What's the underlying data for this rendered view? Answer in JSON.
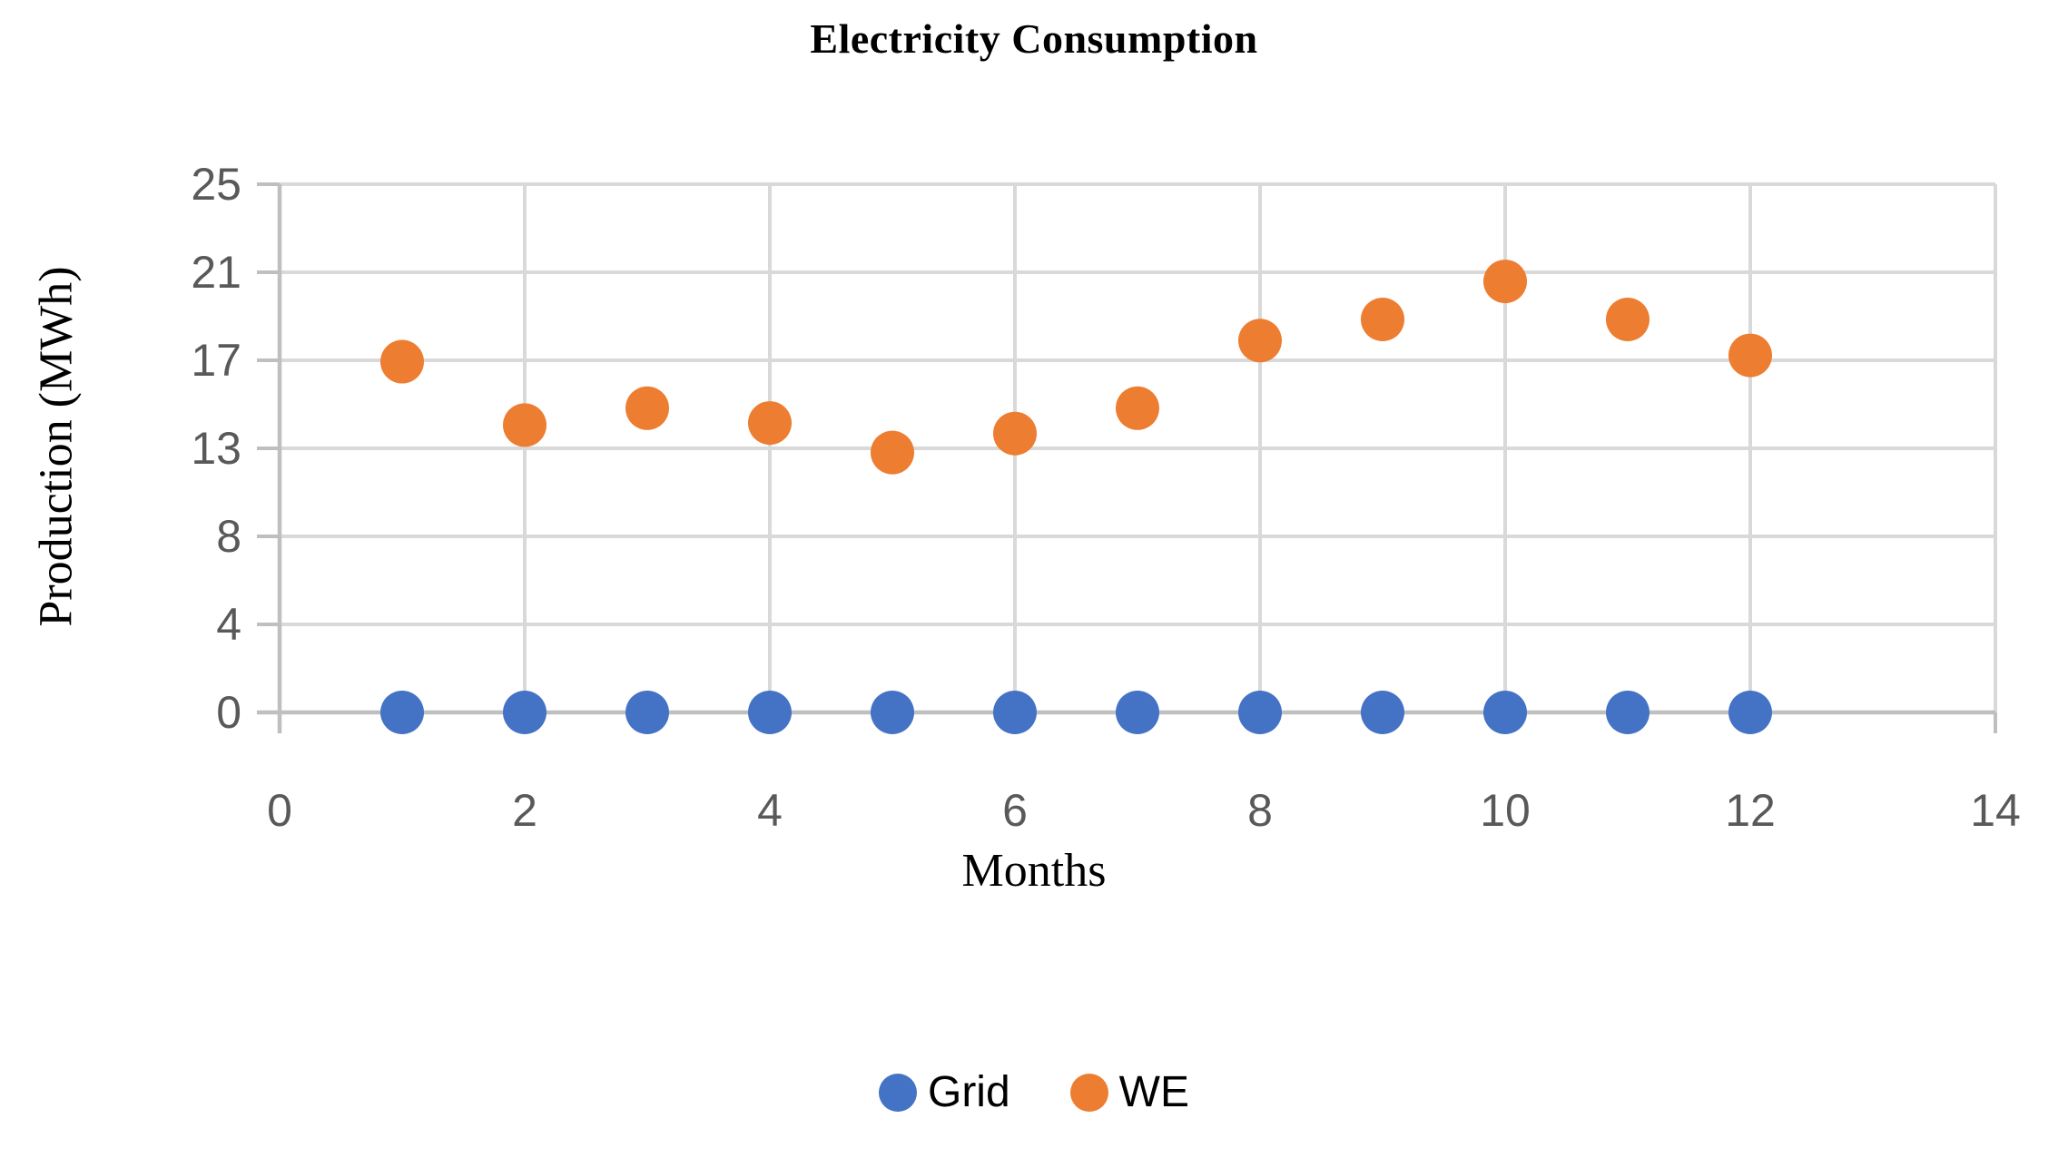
{
  "figure": {
    "title": "Electricity Consumption"
  },
  "chart_data": {
    "type": "scatter",
    "title": "Electricity Consumption",
    "xlabel": "Months",
    "ylabel": "Production (MWh)",
    "xlim": [
      0,
      14
    ],
    "ylim": [
      0,
      25
    ],
    "grid": true,
    "legend_position": "bottom",
    "x_tick_values": [
      0,
      2,
      4,
      6,
      8,
      10,
      12,
      14
    ],
    "x_tick_labels": [
      "0",
      "2",
      "4",
      "6",
      "8",
      "10",
      "12",
      "14"
    ],
    "y_tick_values": [
      0,
      4.1667,
      8.3333,
      12.5,
      16.6667,
      20.8333,
      25
    ],
    "y_tick_labels": [
      "0",
      "4",
      "8",
      "13",
      "17",
      "21",
      "25"
    ],
    "x": [
      1,
      2,
      3,
      4,
      5,
      6,
      7,
      8,
      9,
      10,
      11,
      12
    ],
    "series": [
      {
        "name": "Grid",
        "color": "#4472C4",
        "values": [
          0,
          0,
          0,
          0,
          0,
          0,
          0,
          0,
          0,
          0,
          0,
          0
        ]
      },
      {
        "name": "WE",
        "color": "#ED7D31",
        "values": [
          16.6,
          13.6,
          14.4,
          13.7,
          12.3,
          13.2,
          14.4,
          17.6,
          18.6,
          20.4,
          18.6,
          16.9
        ]
      }
    ]
  },
  "legend": {
    "items": [
      {
        "label": "Grid",
        "color": "#4472C4"
      },
      {
        "label": "WE",
        "color": "#ED7D31"
      }
    ]
  },
  "colors": {
    "gridline": "#D9D9D9",
    "axis_line": "#BFBFBF",
    "tick_label": "#595959",
    "text": "#000000",
    "background": "#FFFFFF"
  }
}
